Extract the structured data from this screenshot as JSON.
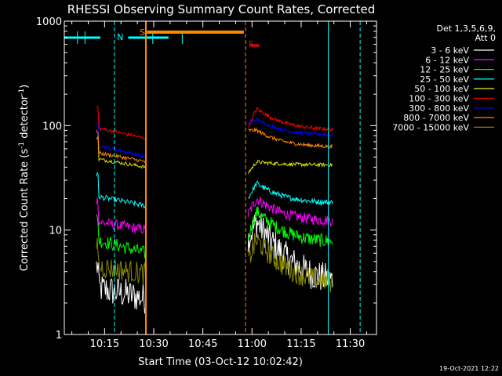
{
  "chart_data": {
    "type": "line",
    "title": "RHESSI Observing Summary Count Rates, Corrected",
    "xlabel": "Start Time (03-Oct-12 10:02:42)",
    "ylabel_main": "Corrected Count Rate (s",
    "ylabel_sup1": "-1",
    "ylabel_mid": " detector",
    "ylabel_sup2": "-1",
    "ylabel_end": ")",
    "yscale": "log",
    "ylim": [
      1,
      1000
    ],
    "xlim_minutes": [
      2.7,
      98
    ],
    "x_ticks": [
      {
        "min": 15,
        "label": "10:15"
      },
      {
        "min": 30,
        "label": "10:30"
      },
      {
        "min": 45,
        "label": "10:45"
      },
      {
        "min": 60,
        "label": "11:00"
      },
      {
        "min": 75,
        "label": "11:15"
      },
      {
        "min": 90,
        "label": "11:30"
      }
    ],
    "y_ticks": [
      {
        "v": 1,
        "label": "1"
      },
      {
        "v": 10,
        "label": "10"
      },
      {
        "v": 100,
        "label": "100"
      },
      {
        "v": 1000,
        "label": "1000"
      }
    ],
    "legend_header": [
      "Det 1,3,5,6,9,",
      "Att 0"
    ],
    "series": [
      {
        "name": "3 - 6 keV",
        "color": "#ffffff"
      },
      {
        "name": "6 - 12 keV",
        "color": "#ff00ff"
      },
      {
        "name": "12 - 25 keV",
        "color": "#00ff00"
      },
      {
        "name": "25 - 50 keV",
        "color": "#00ffff"
      },
      {
        "name": "50 - 100 keV",
        "color": "#dddd00"
      },
      {
        "name": "100 - 300 keV",
        "color": "#ff0000"
      },
      {
        "name": "300 - 800 keV",
        "color": "#0000ff"
      },
      {
        "name": "800 - 7000 keV",
        "color": "#ff8800"
      },
      {
        "name": "7000 - 15000 keV",
        "color": "#888800"
      }
    ],
    "annotations": [
      {
        "label": "N",
        "color": "#00ffff"
      },
      {
        "label": "S",
        "color": "#ff8800"
      },
      {
        "label": "F",
        "color": "#ff0000"
      }
    ],
    "timestamp": "19-Oct-2021 12:22"
  }
}
